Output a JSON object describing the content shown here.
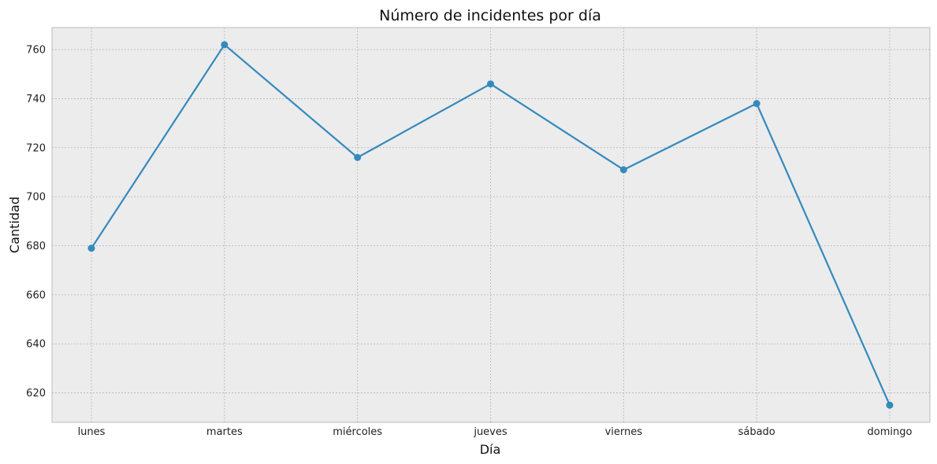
{
  "chart_data": {
    "type": "line",
    "title": "Número de incidentes por día",
    "xlabel": "Día",
    "ylabel": "Cantidad",
    "categories": [
      "lunes",
      "martes",
      "miércoles",
      "jueves",
      "viernes",
      "sábado",
      "domingo"
    ],
    "series": [
      {
        "values": [
          679,
          762,
          716,
          746,
          711,
          738,
          615
        ],
        "color": "#348abd",
        "marker": "circle"
      }
    ],
    "ylim": [
      608,
      769
    ],
    "yticks": [
      620,
      640,
      660,
      680,
      700,
      720,
      740,
      760
    ],
    "grid": true,
    "background": "#ececec",
    "legend": "none"
  }
}
